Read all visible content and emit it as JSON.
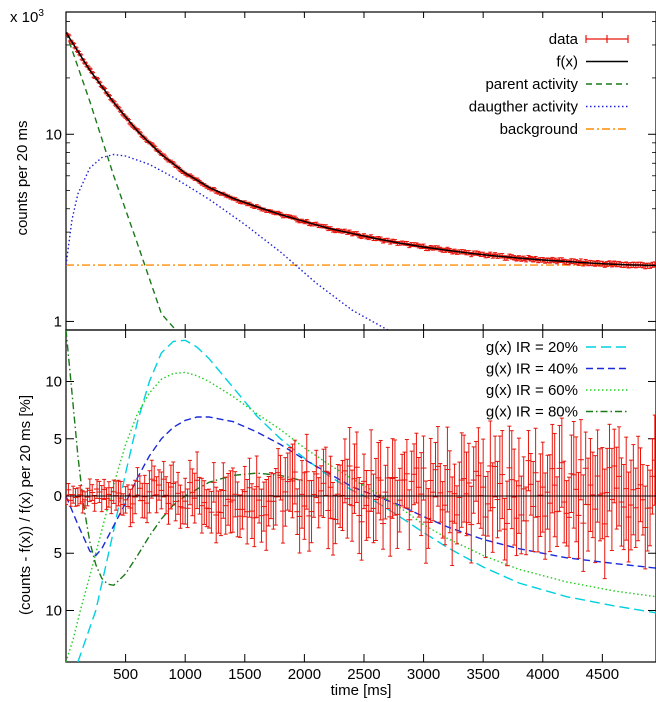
{
  "chart_data": [
    {
      "type": "line",
      "panel": "top",
      "yscale": "log",
      "ylabel": "counts per 20 ms",
      "y_multiplier_label": "x 10",
      "y_multiplier_exp": "3",
      "xlim": [
        0,
        4950
      ],
      "ylim": [
        0.9,
        45
      ],
      "yticks": [
        1,
        10
      ],
      "legend_position": "top-right",
      "series": [
        {
          "name": "data",
          "kind": "errorbar",
          "color": "#e8150c",
          "x": [
            0,
            200,
            400,
            600,
            800,
            1000,
            1200,
            1400,
            1600,
            1800,
            2000,
            2200,
            2400,
            2600,
            2800,
            3000,
            3200,
            3400,
            3600,
            3800,
            4000,
            4200,
            4400,
            4600,
            4800,
            4950
          ],
          "y": [
            35.0,
            22.0,
            14.8,
            10.4,
            7.8,
            6.2,
            5.2,
            4.55,
            4.1,
            3.72,
            3.42,
            3.15,
            2.95,
            2.77,
            2.62,
            2.5,
            2.4,
            2.31,
            2.24,
            2.18,
            2.13,
            2.09,
            2.05,
            2.02,
            2.0,
            1.99
          ]
        },
        {
          "name": "f(x)",
          "kind": "line",
          "color": "#000000",
          "dash": "",
          "x": [
            0,
            200,
            400,
            600,
            800,
            1000,
            1200,
            1400,
            1600,
            1800,
            2000,
            2200,
            2400,
            2600,
            2800,
            3000,
            3200,
            3400,
            3600,
            3800,
            4000,
            4200,
            4400,
            4600,
            4800,
            4950
          ],
          "y": [
            35.0,
            22.0,
            14.8,
            10.4,
            7.8,
            6.2,
            5.2,
            4.55,
            4.1,
            3.72,
            3.42,
            3.15,
            2.95,
            2.77,
            2.62,
            2.5,
            2.4,
            2.31,
            2.24,
            2.18,
            2.13,
            2.09,
            2.05,
            2.02,
            2.0,
            1.99
          ]
        },
        {
          "name": "parent activity",
          "kind": "line",
          "color": "#1a7a1a",
          "dash": "6,4",
          "x": [
            0,
            200,
            400,
            600,
            800,
            920
          ],
          "y": [
            35.0,
            15.0,
            6.0,
            2.6,
            1.1,
            0.9
          ]
        },
        {
          "name": "daugther activity",
          "kind": "line",
          "color": "#2020d0",
          "dash": "1.5,2.5",
          "x": [
            0,
            50,
            100,
            200,
            300,
            400,
            500,
            700,
            900,
            1200,
            1500,
            1800,
            2100,
            2400,
            2700
          ],
          "y": [
            2.0,
            3.5,
            4.8,
            6.6,
            7.5,
            7.8,
            7.65,
            6.9,
            5.9,
            4.5,
            3.3,
            2.35,
            1.6,
            1.15,
            0.9
          ]
        },
        {
          "name": "background",
          "kind": "line",
          "color": "#ff8c00",
          "dash": "8,3,2,3",
          "x": [
            0,
            4950
          ],
          "y": [
            2.0,
            2.0
          ]
        }
      ]
    },
    {
      "type": "line",
      "panel": "bottom",
      "xlabel": "time [ms]",
      "ylabel": "(counts - f(x)) / f(x) per 20 ms [%]",
      "xlim": [
        0,
        4950
      ],
      "ylim": [
        -14.5,
        14.5
      ],
      "xticks": [
        500,
        1000,
        1500,
        2000,
        2500,
        3000,
        3500,
        4000,
        4500
      ],
      "yticks": [
        {
          "value": 10,
          "label": "10"
        },
        {
          "value": 5,
          "label": "5"
        },
        {
          "value": 0,
          "label": "0"
        },
        {
          "value": -5,
          "label": "5"
        },
        {
          "value": -10,
          "label": "10"
        }
      ],
      "legend_position": "top-right",
      "series": [
        {
          "name": "g(x) IR = 20%",
          "kind": "line",
          "color": "#00d0e0",
          "dash": "10,5",
          "x": [
            100,
            250,
            400,
            500,
            600,
            700,
            800,
            900,
            1000,
            1100,
            1200,
            1400,
            1600,
            1800,
            2000,
            2200,
            2400,
            2600,
            2800,
            3000,
            3200,
            3500,
            3800,
            4200,
            4600,
            4950
          ],
          "y": [
            -14.5,
            -10.0,
            -3.0,
            2.0,
            6.5,
            10.0,
            12.5,
            13.5,
            13.6,
            13.0,
            12.0,
            9.5,
            7.0,
            5.0,
            3.3,
            1.8,
            0.5,
            -0.5,
            -1.8,
            -3.2,
            -4.5,
            -6.2,
            -7.6,
            -8.8,
            -9.6,
            -10.2
          ]
        },
        {
          "name": "g(x) IR = 40%",
          "kind": "line",
          "color": "#1a2ad8",
          "dash": "7,4",
          "x": [
            0,
            100,
            200,
            250,
            300,
            400,
            500,
            600,
            700,
            800,
            900,
            1000,
            1100,
            1200,
            1400,
            1600,
            1800,
            2000,
            2200,
            2400,
            2600,
            2800,
            3000,
            3200,
            3500,
            3800,
            4200,
            4600,
            4950
          ],
          "y": [
            0.0,
            -2.5,
            -4.8,
            -5.2,
            -4.6,
            -2.6,
            -0.6,
            1.6,
            3.5,
            5.0,
            6.0,
            6.6,
            6.9,
            6.9,
            6.5,
            5.6,
            4.5,
            3.2,
            2.0,
            0.8,
            0.0,
            -0.8,
            -1.8,
            -2.7,
            -3.8,
            -4.6,
            -5.4,
            -5.9,
            -6.3
          ]
        },
        {
          "name": "g(x) IR = 60%",
          "kind": "line",
          "color": "#22cc22",
          "dash": "1.5,2.5",
          "x": [
            0,
            60,
            120,
            200,
            300,
            400,
            500,
            600,
            700,
            800,
            900,
            1000,
            1100,
            1200,
            1400,
            1600,
            1800,
            2000,
            2200,
            2400,
            2600,
            2800,
            3000,
            3200,
            3500,
            3800,
            4200,
            4600,
            4950
          ],
          "y": [
            -14.5,
            -12.5,
            -10.0,
            -7.0,
            -3.0,
            1.0,
            4.5,
            7.2,
            9.0,
            10.2,
            10.7,
            10.8,
            10.5,
            10.0,
            8.7,
            7.2,
            5.8,
            4.2,
            2.8,
            1.5,
            0.3,
            -1.0,
            -2.5,
            -3.7,
            -5.2,
            -6.4,
            -7.5,
            -8.3,
            -8.8
          ]
        },
        {
          "name": "g(x) IR = 80%",
          "kind": "line",
          "color": "#1a7a1a",
          "dash": "7,3,1.5,3",
          "x": [
            0,
            50,
            100,
            150,
            200,
            250,
            300,
            350,
            400,
            450,
            500,
            600,
            700,
            800,
            900,
            1000,
            1200,
            1400,
            1600,
            1800,
            2000
          ],
          "y": [
            14.5,
            9.0,
            3.5,
            -1.0,
            -4.0,
            -6.0,
            -7.2,
            -7.7,
            -7.8,
            -7.3,
            -6.8,
            -5.2,
            -3.5,
            -2.0,
            -0.8,
            0.0,
            1.2,
            1.8,
            2.0,
            1.8,
            1.3
          ]
        },
        {
          "name": "data",
          "kind": "errorbar",
          "color": "#e8150c",
          "x": [
            0,
            200,
            400,
            600,
            800,
            1000,
            1200,
            1400,
            1600,
            1800,
            2000,
            2200,
            2400,
            2600,
            2800,
            3000,
            3200,
            3400,
            3600,
            3800,
            4000,
            4200,
            4400,
            4600,
            4800,
            4950
          ],
          "y": [
            0.5,
            -0.6,
            -0.3,
            0.4,
            0.7,
            0.6,
            0.2,
            0.5,
            -0.4,
            0.8,
            0.6,
            0.3,
            0.9,
            0.1,
            -0.2,
            1.0,
            0.3,
            0.6,
            -0.5,
            0.8,
            0.9,
            -0.3,
            0.5,
            1.3,
            -1.5,
            0.7
          ],
          "err": [
            0.6,
            0.9,
            1.1,
            1.5,
            1.8,
            2.0,
            2.2,
            2.4,
            2.5,
            2.7,
            2.8,
            2.9,
            3.0,
            3.1,
            3.2,
            3.3,
            3.4,
            3.5,
            3.6,
            3.7,
            3.8,
            3.9,
            4.0,
            4.0,
            4.1,
            4.2
          ]
        },
        {
          "name": "",
          "kind": "line",
          "color": "#000000",
          "dash": "",
          "x": [
            0,
            4950
          ],
          "y": [
            0,
            0
          ]
        }
      ]
    }
  ]
}
